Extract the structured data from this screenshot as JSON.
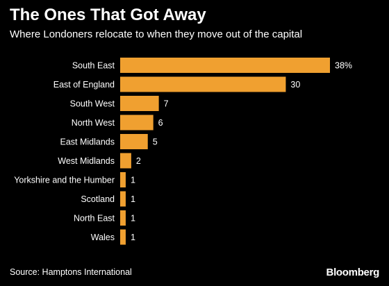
{
  "header": {
    "title": "The Ones That Got Away",
    "subtitle": "Where Londoners relocate to when they move out of the capital"
  },
  "footer": {
    "source": "Source: Hamptons International",
    "logo": "Bloomberg"
  },
  "colors": {
    "background": "#000000",
    "bar": "#F0A030",
    "text": "#ffffff"
  },
  "chart_data": {
    "type": "bar",
    "orientation": "horizontal",
    "title": "The Ones That Got Away",
    "subtitle": "Where Londoners relocate to when they move out of the capital",
    "categories": [
      "South East",
      "East of England",
      "South West",
      "North West",
      "East Midlands",
      "West Midlands",
      "Yorkshire and the Humber",
      "Scotland",
      "North East",
      "Wales"
    ],
    "values": [
      38,
      30,
      7,
      6,
      5,
      2,
      1,
      1,
      1,
      1
    ],
    "value_labels": [
      "38%",
      "30",
      "7",
      "6",
      "5",
      "2",
      "1",
      "1",
      "1",
      "1"
    ],
    "unit": "%",
    "xlim": [
      0,
      38
    ],
    "grid": false,
    "legend": "none"
  }
}
